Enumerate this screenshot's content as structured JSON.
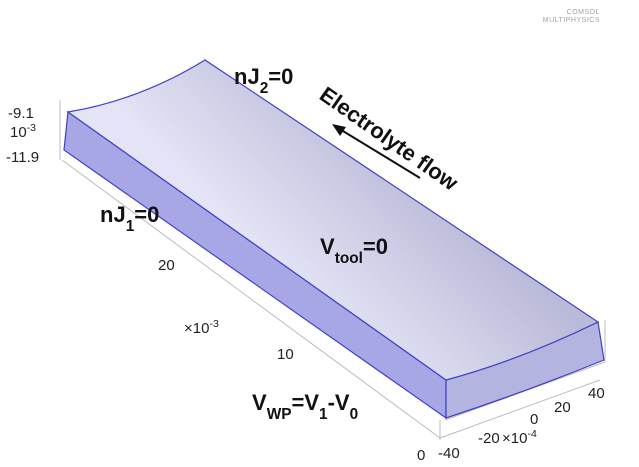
{
  "logo": [
    "COMSOL",
    "MULTIPHYSICS"
  ],
  "axis_labels": [
    {
      "parts": [
        {
          "text": "-9.1"
        }
      ]
    },
    {
      "parts": [
        {
          "text": "10"
        },
        {
          "text": "-3",
          "sup": true
        }
      ]
    },
    {
      "parts": [
        {
          "text": "-11.9"
        }
      ]
    },
    {
      "parts": [
        {
          "text": "20"
        }
      ]
    },
    {
      "parts": [
        {
          "text": "×10"
        },
        {
          "text": "-3",
          "sup": true
        }
      ]
    },
    {
      "parts": [
        {
          "text": "10"
        }
      ]
    },
    {
      "parts": [
        {
          "text": "0"
        }
      ]
    },
    {
      "parts": [
        {
          "text": "-40"
        }
      ]
    },
    {
      "parts": [
        {
          "text": "-20"
        }
      ]
    },
    {
      "parts": [
        {
          "text": "×10"
        },
        {
          "text": "-4",
          "sup": true
        }
      ]
    },
    {
      "parts": [
        {
          "text": "0"
        }
      ]
    },
    {
      "parts": [
        {
          "text": "20"
        }
      ]
    },
    {
      "parts": [
        {
          "text": "40"
        }
      ]
    }
  ],
  "annotations": [
    {
      "parts": [
        {
          "text": "nJ"
        },
        {
          "text": "2",
          "sub": true
        },
        {
          "text": "=0"
        }
      ]
    },
    {
      "parts": [
        {
          "text": "Electrolyte flow"
        }
      ]
    },
    {
      "parts": [
        {
          "text": "nJ"
        },
        {
          "text": "1",
          "sub": true
        },
        {
          "text": "=0"
        }
      ]
    },
    {
      "parts": [
        {
          "text": "V"
        },
        {
          "text": "tool",
          "sub": true
        },
        {
          "text": "=0"
        }
      ]
    },
    {
      "parts": [
        {
          "text": "V"
        },
        {
          "text": "WP",
          "sub": true
        },
        {
          "text": "=V"
        },
        {
          "text": "1",
          "sub": true
        },
        {
          "text": "-V"
        },
        {
          "text": "0",
          "sub": true
        }
      ]
    }
  ]
}
